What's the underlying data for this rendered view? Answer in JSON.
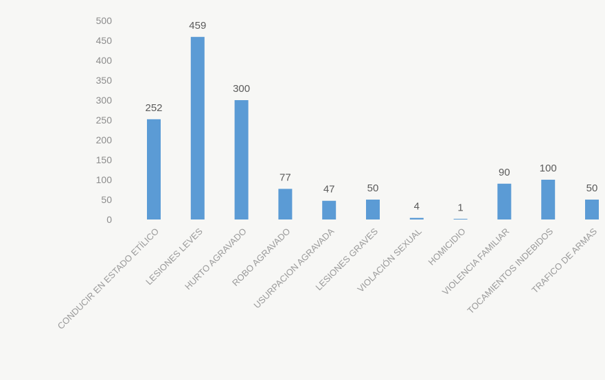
{
  "chart_data": {
    "type": "bar",
    "categories": [
      "CONDUCIR EN ESTADO ETÍLICO",
      "LESIONES LEVES",
      "HURTO AGRAVADO",
      "ROBO AGRAVADO",
      "USURPACION AGRAVADA",
      "LESIONES GRAVES",
      "VIOLACIÓN SEXUAL",
      "HOMICIDIO",
      "VIOLENCIA FAMILIAR",
      "TOCAMIENTOS INDEBIDOS",
      "TRAFICO DE ARMAS"
    ],
    "values": [
      252,
      459,
      300,
      77,
      47,
      50,
      4,
      1,
      90,
      100,
      50
    ],
    "data_labels": [
      "252",
      "459",
      "300",
      "77",
      "47",
      "50",
      "4",
      "1",
      "90",
      "100",
      "50"
    ],
    "yticks": [
      "0",
      "50",
      "100",
      "150",
      "200",
      "250",
      "300",
      "350",
      "400",
      "450",
      "500"
    ],
    "ylim": [
      0,
      500
    ],
    "title": "",
    "xlabel": "",
    "ylabel": "",
    "grid": false,
    "bar_color": "#5b9bd5"
  }
}
